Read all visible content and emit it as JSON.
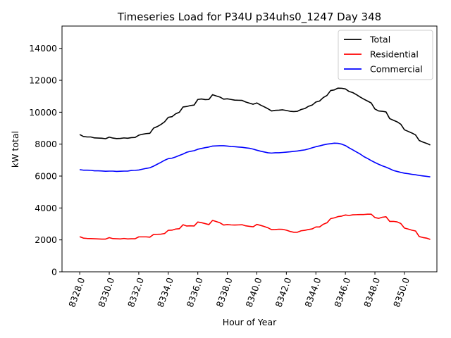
{
  "chart_data": {
    "type": "line",
    "title": "Timeseries Load for P34U p34uhs0_1247  Day 348",
    "xlabel": "Hour of Year",
    "ylabel": "kW total",
    "xlim": [
      8326.8,
      8352.2
    ],
    "ylim": [
      0,
      15400
    ],
    "xticks": [
      8328.0,
      8330.0,
      8332.0,
      8334.0,
      8336.0,
      8338.0,
      8340.0,
      8342.0,
      8344.0,
      8346.0,
      8348.0,
      8350.0
    ],
    "xtick_labels": [
      "8328.0",
      "8330.0",
      "8332.0",
      "8334.0",
      "8336.0",
      "8338.0",
      "8340.0",
      "8342.0",
      "8344.0",
      "8346.0",
      "8348.0",
      "8350.0"
    ],
    "yticks": [
      0,
      2000,
      4000,
      6000,
      8000,
      10000,
      12000,
      14000
    ],
    "ytick_labels": [
      "0",
      "2000",
      "4000",
      "6000",
      "8000",
      "10000",
      "12000",
      "14000"
    ],
    "legend_position": "top-right",
    "x": [
      8328.0,
      8328.25,
      8328.5,
      8328.75,
      8329.0,
      8329.25,
      8329.5,
      8329.75,
      8330.0,
      8330.25,
      8330.5,
      8330.75,
      8331.0,
      8331.25,
      8331.5,
      8331.75,
      8332.0,
      8332.25,
      8332.5,
      8332.75,
      8333.0,
      8333.25,
      8333.5,
      8333.75,
      8334.0,
      8334.25,
      8334.5,
      8334.75,
      8335.0,
      8335.25,
      8335.5,
      8335.75,
      8336.0,
      8336.25,
      8336.5,
      8336.75,
      8337.0,
      8337.25,
      8337.5,
      8337.75,
      8338.0,
      8338.25,
      8338.5,
      8338.75,
      8339.0,
      8339.25,
      8339.5,
      8339.75,
      8340.0,
      8340.25,
      8340.5,
      8340.75,
      8341.0,
      8341.25,
      8341.5,
      8341.75,
      8342.0,
      8342.25,
      8342.5,
      8342.75,
      8343.0,
      8343.25,
      8343.5,
      8343.75,
      8344.0,
      8344.25,
      8344.5,
      8344.75,
      8345.0,
      8345.25,
      8345.5,
      8345.75,
      8346.0,
      8346.25,
      8346.5,
      8346.75,
      8347.0,
      8347.25,
      8347.5,
      8347.75,
      8348.0,
      8348.25,
      8348.5,
      8348.75,
      8349.0,
      8349.25,
      8349.5,
      8349.75,
      8350.0,
      8350.25,
      8350.5,
      8350.75,
      8351.0,
      8351.25,
      8351.5,
      8351.75
    ],
    "series": [
      {
        "name": "Total",
        "color": "#000000",
        "values": [
          8600,
          8480,
          8450,
          8450,
          8390,
          8380,
          8370,
          8340,
          8440,
          8380,
          8350,
          8360,
          8390,
          8370,
          8410,
          8420,
          8560,
          8620,
          8660,
          8680,
          9000,
          9100,
          9230,
          9400,
          9680,
          9720,
          9900,
          10000,
          10330,
          10360,
          10420,
          10450,
          10800,
          10830,
          10790,
          10800,
          11100,
          11020,
          10950,
          10820,
          10840,
          10800,
          10760,
          10750,
          10740,
          10640,
          10570,
          10500,
          10580,
          10450,
          10340,
          10220,
          10080,
          10120,
          10130,
          10150,
          10110,
          10060,
          10040,
          10060,
          10170,
          10230,
          10370,
          10450,
          10640,
          10700,
          10920,
          11050,
          11360,
          11400,
          11510,
          11500,
          11460,
          11300,
          11230,
          11100,
          10950,
          10820,
          10700,
          10580,
          10200,
          10080,
          10060,
          10020,
          9600,
          9500,
          9400,
          9250,
          8900,
          8800,
          8700,
          8580,
          8230,
          8130,
          8050,
          7950
        ]
      },
      {
        "name": "Residential",
        "color": "#ff0000",
        "values": [
          2200,
          2110,
          2090,
          2080,
          2070,
          2060,
          2050,
          2050,
          2140,
          2080,
          2070,
          2060,
          2090,
          2060,
          2070,
          2070,
          2190,
          2190,
          2190,
          2170,
          2340,
          2350,
          2360,
          2400,
          2600,
          2610,
          2680,
          2700,
          2950,
          2870,
          2880,
          2870,
          3120,
          3080,
          3020,
          2960,
          3220,
          3150,
          3070,
          2930,
          2960,
          2940,
          2930,
          2940,
          2950,
          2880,
          2850,
          2820,
          2970,
          2910,
          2840,
          2760,
          2640,
          2650,
          2670,
          2660,
          2610,
          2530,
          2480,
          2480,
          2570,
          2600,
          2650,
          2690,
          2810,
          2810,
          2980,
          3070,
          3330,
          3380,
          3460,
          3490,
          3560,
          3530,
          3570,
          3580,
          3590,
          3590,
          3610,
          3610,
          3400,
          3350,
          3420,
          3450,
          3160,
          3160,
          3130,
          3030,
          2740,
          2680,
          2610,
          2560,
          2210,
          2150,
          2110,
          2030
        ]
      },
      {
        "name": "Commercial",
        "color": "#0000ff",
        "values": [
          6400,
          6370,
          6370,
          6360,
          6330,
          6330,
          6320,
          6300,
          6310,
          6310,
          6290,
          6300,
          6310,
          6310,
          6350,
          6360,
          6380,
          6430,
          6480,
          6520,
          6620,
          6740,
          6860,
          6990,
          7090,
          7120,
          7200,
          7290,
          7380,
          7490,
          7550,
          7590,
          7680,
          7730,
          7780,
          7820,
          7880,
          7890,
          7900,
          7900,
          7880,
          7850,
          7840,
          7820,
          7800,
          7770,
          7740,
          7690,
          7620,
          7560,
          7510,
          7460,
          7440,
          7460,
          7460,
          7480,
          7500,
          7520,
          7550,
          7570,
          7610,
          7640,
          7700,
          7770,
          7840,
          7890,
          7950,
          8000,
          8030,
          8060,
          8050,
          8000,
          7910,
          7770,
          7640,
          7510,
          7380,
          7220,
          7100,
          6970,
          6850,
          6740,
          6640,
          6560,
          6460,
          6350,
          6290,
          6230,
          6180,
          6150,
          6110,
          6080,
          6040,
          6010,
          5980,
          5950
        ]
      }
    ]
  }
}
